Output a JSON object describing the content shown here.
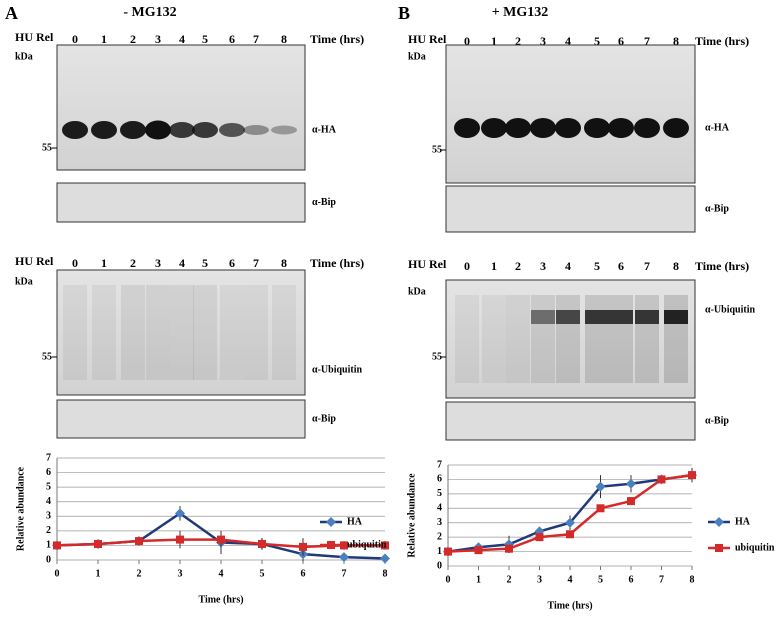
{
  "panels": [
    {
      "label": "A",
      "title": "- MG132",
      "blots": [
        {
          "header": "HU Rel",
          "lanes": [
            "0",
            "1",
            "2",
            "3",
            "4",
            "5",
            "6",
            "7",
            "8"
          ],
          "time": "Time (hrs)",
          "unit": "kDa",
          "marker": "55",
          "antibody": "α-HA",
          "loading": "α-Bip"
        },
        {
          "header": "HU Rel",
          "lanes": [
            "0",
            "1",
            "2",
            "3",
            "4",
            "5",
            "6",
            "7",
            "8"
          ],
          "time": "Time (hrs)",
          "unit": "kDa",
          "marker": "55",
          "antibody": "α-Ubiquitin",
          "loading": "α-Bip"
        }
      ]
    },
    {
      "label": "B",
      "title": "+ MG132",
      "blots": [
        {
          "header": "HU Rel",
          "lanes": [
            "0",
            "1",
            "2",
            "3",
            "4",
            "5",
            "6",
            "7",
            "8"
          ],
          "time": "Time (hrs)",
          "unit": "kDa",
          "marker": "55",
          "antibody": "α-HA",
          "loading": "α-Bip"
        },
        {
          "header": "HU Rel",
          "lanes": [
            "0",
            "1",
            "2",
            "3",
            "4",
            "5",
            "6",
            "7",
            "8"
          ],
          "time": "Time (hrs)",
          "unit": "kDa",
          "marker": "55",
          "antibody": "α-Ubiquitin",
          "loading": "α-Bip"
        }
      ]
    }
  ],
  "chart_data": [
    {
      "type": "line",
      "xlabel": "Time (hrs)",
      "ylabel": "Relative abundance",
      "x": [
        0,
        1,
        2,
        3,
        4,
        5,
        6,
        7,
        8
      ],
      "xlim": [
        0,
        8
      ],
      "xticks": [
        0,
        1,
        2,
        3,
        4,
        5,
        6,
        7,
        8
      ],
      "ylim": [
        0,
        7
      ],
      "yticks": [
        0,
        1,
        2,
        3,
        4,
        5,
        6,
        7
      ],
      "grid": true,
      "legend": "right",
      "series": [
        {
          "name": "HA",
          "color": "#1f3a7a",
          "marker": "diamond",
          "values": [
            1,
            1.1,
            1.3,
            3.2,
            1.2,
            1.1,
            0.4,
            0.2,
            0.1
          ],
          "errors": [
            0.1,
            0.1,
            0.2,
            0.5,
            0.8,
            0.4,
            0.5,
            0.1,
            0.1
          ]
        },
        {
          "name": "ubiquitin",
          "color": "#d42a2a",
          "marker": "square",
          "values": [
            1,
            1.1,
            1.3,
            1.4,
            1.4,
            1.1,
            0.9,
            1.0,
            1.0
          ],
          "errors": [
            0.1,
            0.2,
            0.2,
            0.6,
            0.6,
            0.4,
            0.6,
            0.3,
            0.3
          ]
        }
      ]
    },
    {
      "type": "line",
      "xlabel": "Time (hrs)",
      "ylabel": "Relative abundance",
      "x": [
        0,
        1,
        2,
        3,
        4,
        5,
        6,
        7,
        8
      ],
      "xlim": [
        0,
        8
      ],
      "xticks": [
        0,
        1,
        2,
        3,
        4,
        5,
        6,
        7,
        8
      ],
      "ylim": [
        0,
        7
      ],
      "yticks": [
        0,
        1,
        2,
        3,
        4,
        5,
        6,
        7
      ],
      "grid": true,
      "legend": "right",
      "series": [
        {
          "name": "HA",
          "color": "#1f3a7a",
          "marker": "diamond",
          "values": [
            1,
            1.3,
            1.5,
            2.4,
            3.0,
            5.5,
            5.7,
            6.0,
            6.3
          ],
          "errors": [
            0.1,
            0.2,
            0.6,
            0.3,
            0.5,
            0.8,
            0.6,
            0.2,
            0.5
          ]
        },
        {
          "name": "ubiquitin",
          "color": "#d42a2a",
          "marker": "square",
          "values": [
            1,
            1.1,
            1.2,
            2.0,
            2.2,
            4.0,
            4.5,
            6.0,
            6.3
          ],
          "errors": [
            0.1,
            0.1,
            0.2,
            0.2,
            0.2,
            0.2,
            0.2,
            0.2,
            0.3
          ]
        }
      ]
    }
  ]
}
